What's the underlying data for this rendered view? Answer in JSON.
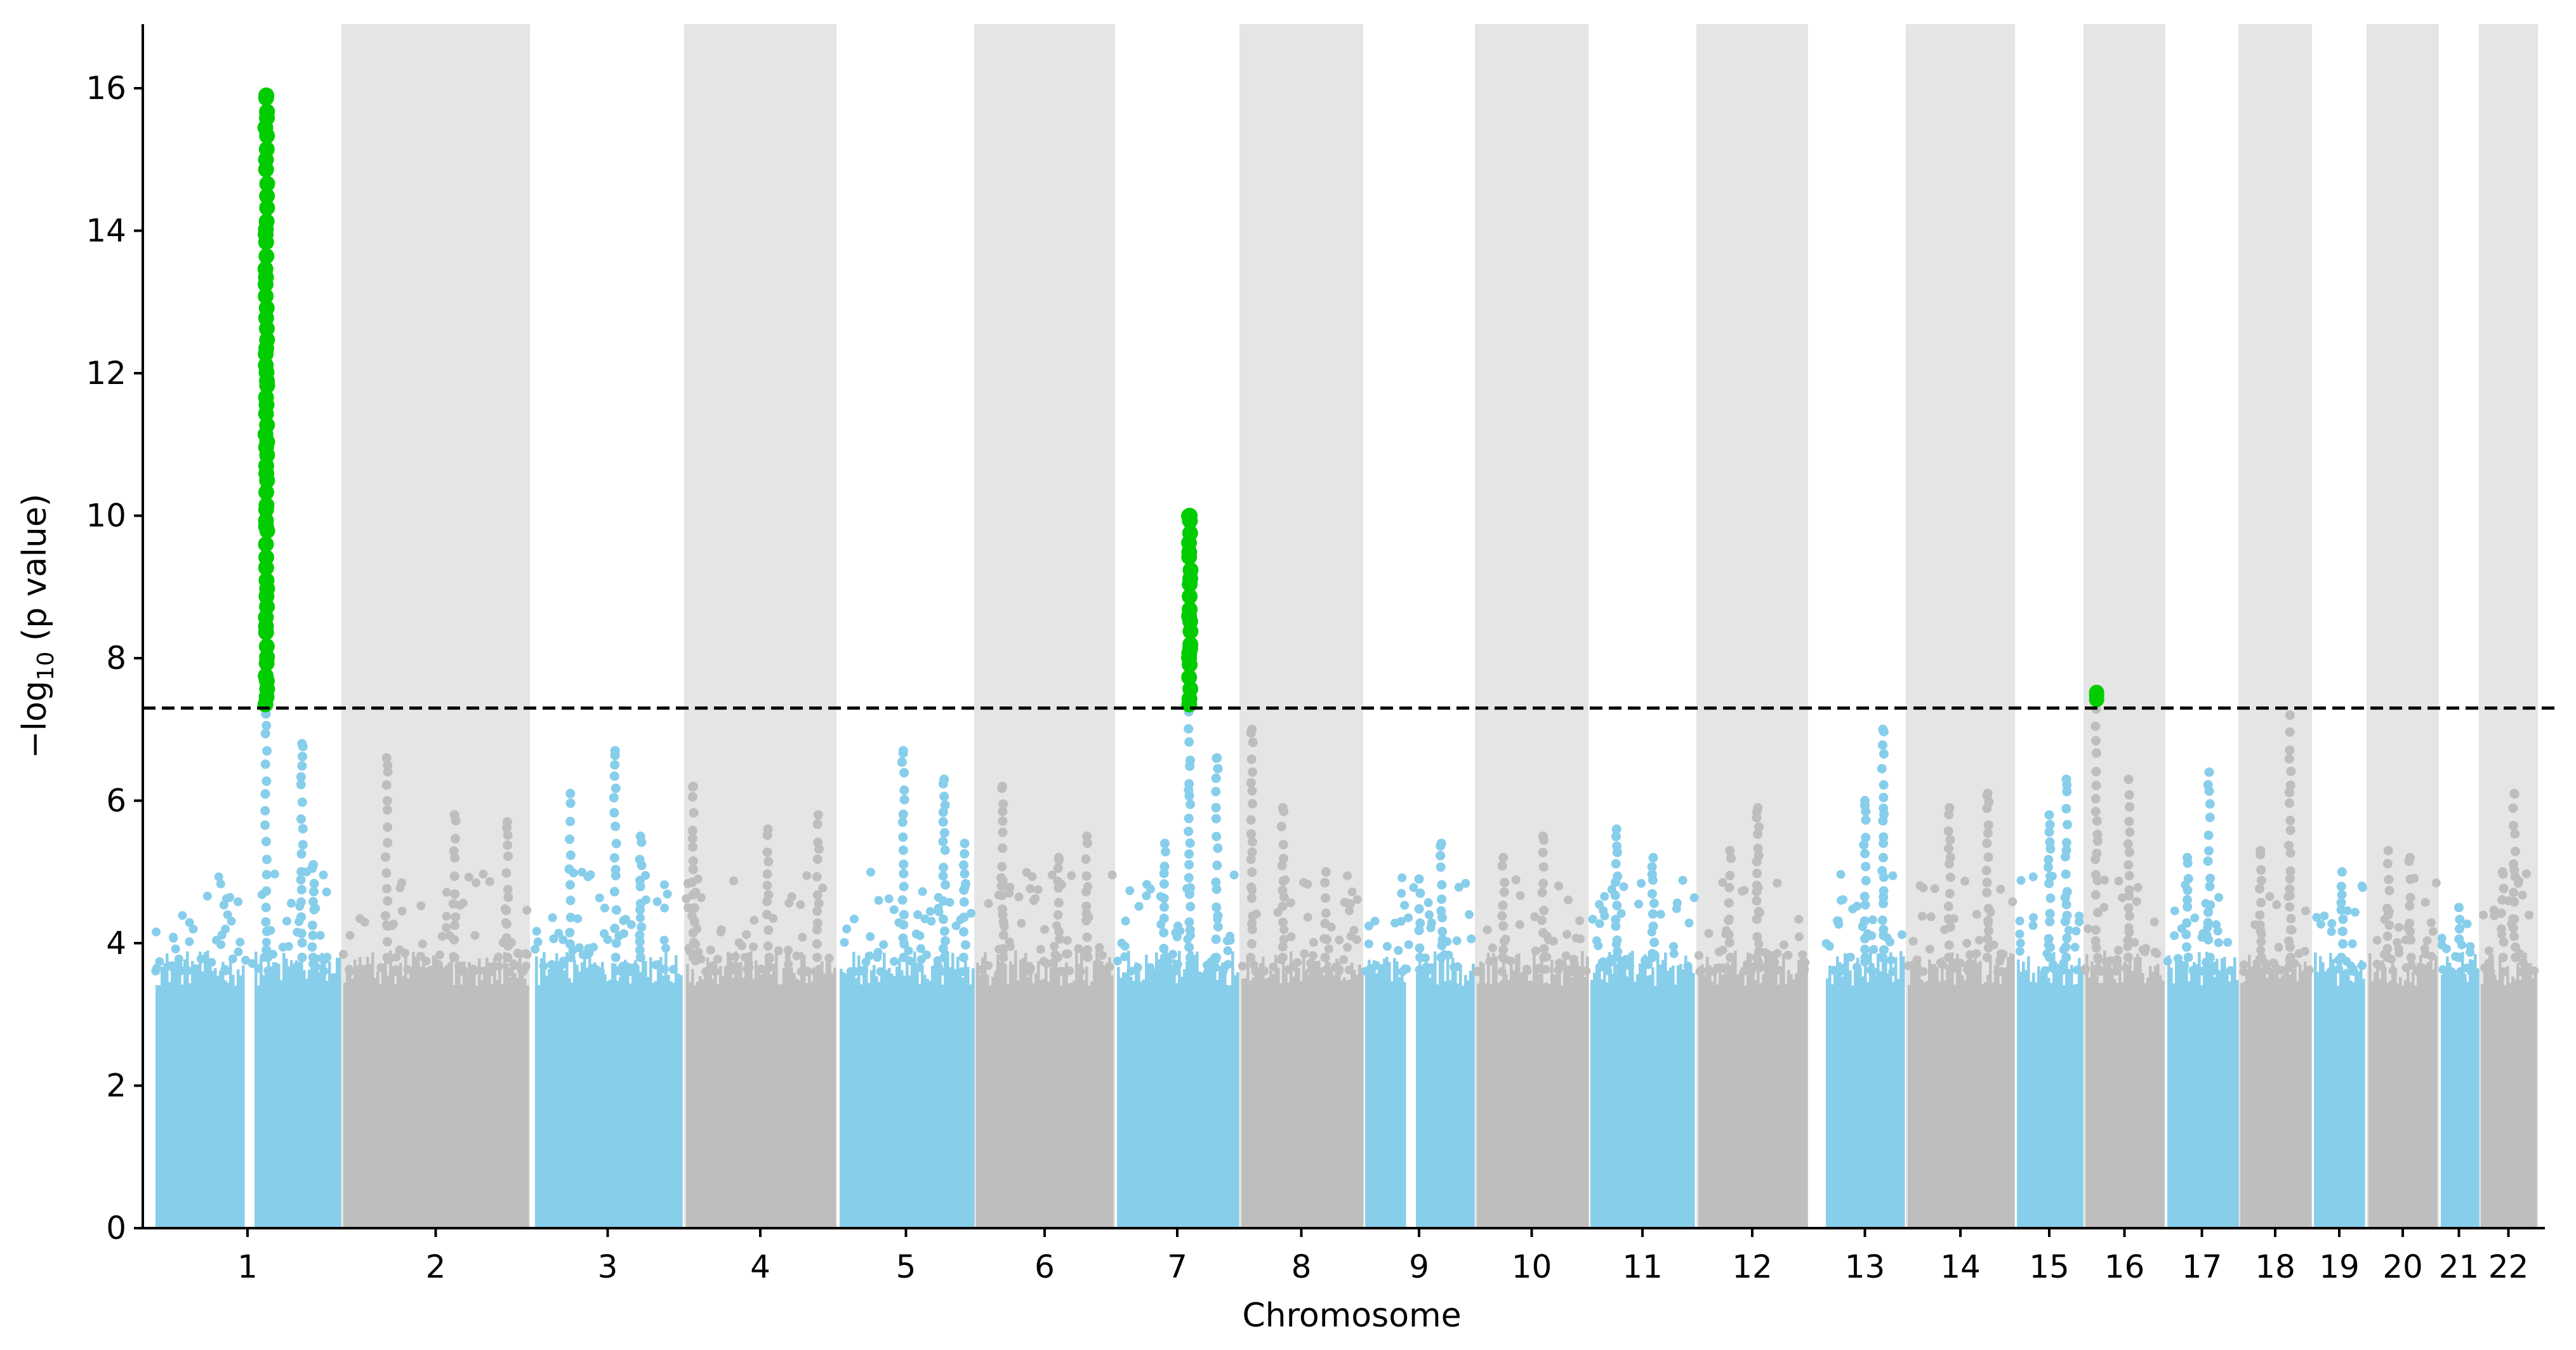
{
  "chart_data": {
    "type": "scatter",
    "subtype": "manhattan",
    "xlabel": "Chromosome",
    "ylabel_prefix": "−log",
    "ylabel_sub": "10",
    "ylabel_suffix": " (p value)",
    "ylim": [
      0,
      16.9
    ],
    "yticks": [
      0,
      2,
      4,
      6,
      8,
      10,
      12,
      14,
      16
    ],
    "threshold": 7.3,
    "colors": {
      "odd_chrom": "#87ceeb",
      "even_chrom": "#bebebe",
      "even_band": "#e5e5e5",
      "significant": "#00cc00",
      "threshold_line": "#000000"
    },
    "chromosomes": [
      {
        "label": "1",
        "peaks": [
          [
            0.6,
            7.3,
            "sig"
          ],
          [
            0.79,
            6.8
          ],
          [
            0.85,
            5.1
          ]
        ]
      },
      {
        "label": "2",
        "peaks": [
          [
            0.24,
            6.6
          ],
          [
            0.6,
            5.8
          ],
          [
            0.88,
            5.7
          ]
        ]
      },
      {
        "label": "3",
        "peaks": [
          [
            0.25,
            6.1
          ],
          [
            0.55,
            6.7
          ],
          [
            0.72,
            5.5
          ]
        ]
      },
      {
        "label": "4",
        "peaks": [
          [
            0.06,
            6.2
          ],
          [
            0.55,
            5.6
          ],
          [
            0.88,
            5.8
          ]
        ]
      },
      {
        "label": "5",
        "peaks": [
          [
            0.48,
            6.7
          ],
          [
            0.78,
            6.3
          ],
          [
            0.93,
            5.4
          ]
        ]
      },
      {
        "label": "6",
        "peaks": [
          [
            0.2,
            6.2
          ],
          [
            0.6,
            5.2
          ],
          [
            0.8,
            5.5
          ]
        ]
      },
      {
        "label": "7",
        "peaks": [
          [
            0.6,
            7.3,
            "sig"
          ],
          [
            0.82,
            6.6
          ],
          [
            0.4,
            5.4
          ]
        ]
      },
      {
        "label": "8",
        "peaks": [
          [
            0.1,
            7.0
          ],
          [
            0.35,
            5.9
          ],
          [
            0.7,
            5.0
          ]
        ]
      },
      {
        "label": "9",
        "peaks": [
          [
            0.7,
            5.4
          ],
          [
            0.5,
            4.9
          ]
        ]
      },
      {
        "label": "10",
        "peaks": [
          [
            0.6,
            5.5
          ],
          [
            0.25,
            5.2
          ]
        ]
      },
      {
        "label": "11",
        "peaks": [
          [
            0.26,
            5.6
          ],
          [
            0.6,
            5.2
          ]
        ]
      },
      {
        "label": "12",
        "peaks": [
          [
            0.55,
            5.9
          ],
          [
            0.3,
            5.3
          ]
        ]
      },
      {
        "label": "13",
        "peaks": [
          [
            0.72,
            7.0
          ],
          [
            0.5,
            6.0
          ]
        ]
      },
      {
        "label": "14",
        "peaks": [
          [
            0.4,
            5.9
          ],
          [
            0.75,
            6.1
          ]
        ]
      },
      {
        "label": "15",
        "peaks": [
          [
            0.75,
            6.3
          ],
          [
            0.5,
            5.8
          ]
        ]
      },
      {
        "label": "16",
        "peaks": [
          [
            0.16,
            7.4,
            "sig"
          ],
          [
            0.55,
            6.3
          ]
        ]
      },
      {
        "label": "17",
        "peaks": [
          [
            0.6,
            6.4
          ],
          [
            0.3,
            5.2
          ]
        ]
      },
      {
        "label": "18",
        "peaks": [
          [
            0.7,
            7.2
          ],
          [
            0.3,
            5.3
          ]
        ]
      },
      {
        "label": "19",
        "peaks": [
          [
            0.55,
            5.0
          ]
        ]
      },
      {
        "label": "20",
        "peaks": [
          [
            0.6,
            5.2
          ],
          [
            0.3,
            5.3
          ]
        ]
      },
      {
        "label": "21",
        "peaks": [
          [
            0.5,
            4.5
          ]
        ]
      },
      {
        "label": "22",
        "peaks": [
          [
            0.6,
            6.1
          ],
          [
            0.4,
            5.0
          ]
        ]
      }
    ],
    "significant_hits": [
      {
        "chromosome": "1",
        "max": 15.9
      },
      {
        "chromosome": "7",
        "max": 10.0
      },
      {
        "chromosome": "16",
        "max": 7.5
      }
    ]
  }
}
